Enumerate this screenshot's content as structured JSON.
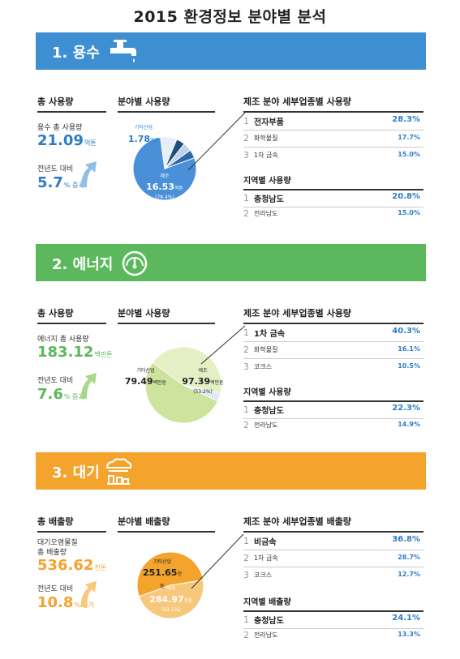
{
  "title": "2015 환경정보 분야별 분석",
  "sections": [
    {
      "title": "1. 용수",
      "color": "#3d8fd1",
      "icon": "faucet-icon",
      "total_head": "총 사용량",
      "total_label": "용수 총 사용량",
      "total_value": "21.09",
      "total_unit": "억톤",
      "change_label": "전년도 대비",
      "change_value": "5.7",
      "change_unit": "% 증가",
      "pie_head": "분야별 사용량",
      "sector_head": "제조 분야 세부업종별 사용량",
      "sectors": [
        {
          "rank": "1",
          "name": "전자부품",
          "value": "28.3%"
        },
        {
          "rank": "2",
          "name": "화학물질",
          "value": "17.7%"
        },
        {
          "rank": "3",
          "name": "1차 금속",
          "value": "15.0%"
        }
      ],
      "region_head": "지역별 사용량",
      "regions": [
        {
          "rank": "1",
          "name": "충청남도",
          "value": "20.8%"
        },
        {
          "rank": "2",
          "name": "전라남도",
          "value": "15.0%"
        }
      ],
      "pie_main": {
        "name": "제조",
        "value": "16.53",
        "unit": "억톤",
        "pct": "(78.4%)"
      },
      "pie_other": {
        "name": "기타산업",
        "value": "1.78",
        "unit": "억톤"
      }
    },
    {
      "title": "2. 에너지",
      "color": "#5cb85c",
      "icon": "gauge-icon",
      "total_head": "총 사용량",
      "total_label": "에너지 총 사용량",
      "total_value": "183.12",
      "total_unit": "백만톤",
      "change_label": "전년도 대비",
      "change_value": "7.6",
      "change_unit": "% 증가",
      "pie_head": "분야별 사용량",
      "sector_head": "제조 분야 세부업종별 사용량",
      "sectors": [
        {
          "rank": "1",
          "name": "1차 금속",
          "value": "40.3%"
        },
        {
          "rank": "2",
          "name": "화학물질",
          "value": "16.1%"
        },
        {
          "rank": "3",
          "name": "코크스",
          "value": "10.5%"
        }
      ],
      "region_head": "지역별 사용량",
      "regions": [
        {
          "rank": "1",
          "name": "충청남도",
          "value": "22.3%"
        },
        {
          "rank": "2",
          "name": "전라남도",
          "value": "14.9%"
        }
      ],
      "pie_main": {
        "name": "제조",
        "value": "97.39",
        "unit": "백만톤",
        "pct": "(53.2%)"
      },
      "pie_other": {
        "name": "기타산업",
        "value": "79.49",
        "unit": "백만톤"
      }
    },
    {
      "title": "3. 대기",
      "color": "#f4a32c",
      "icon": "smoke-icon",
      "total_head": "총 배출량",
      "total_label": "대기오염물질\n총 배출량",
      "total_value": "536.62",
      "total_unit": "천톤",
      "change_label": "전년도 대비",
      "change_value": "10.8",
      "change_unit": "% 증가",
      "pie_head": "분야별 배출량",
      "sector_head": "제조 분야 세부업종별 배출량",
      "sectors": [
        {
          "rank": "1",
          "name": "비금속",
          "value": "36.8%"
        },
        {
          "rank": "2",
          "name": "1차 금속",
          "value": "28.7%"
        },
        {
          "rank": "3",
          "name": "코크스",
          "value": "12.7%"
        }
      ],
      "region_head": "지역별 배출량",
      "regions": [
        {
          "rank": "1",
          "name": "충청남도",
          "value": "24.1%"
        },
        {
          "rank": "2",
          "name": "전라남도",
          "value": "13.3%"
        }
      ],
      "pie_main": {
        "name": "제조",
        "value": "284.97",
        "unit": "천톤",
        "pct": "(53.1%)"
      },
      "pie_other": {
        "name": "기타산업",
        "value": "251.65",
        "unit": "천톤"
      }
    }
  ],
  "chart_data": [
    {
      "type": "pie",
      "categories": [
        "제조",
        "기타산업",
        "기타",
        "기타",
        "기타"
      ],
      "values": [
        78.4,
        8.4,
        4.4,
        4.4,
        4.4
      ],
      "colors": [
        "#4a90d9",
        "#e6eef7",
        "#1f4e79",
        "#bcd3ec",
        "#2f6aa8"
      ]
    },
    {
      "type": "pie",
      "categories": [
        "제조",
        "기타산업",
        "기타"
      ],
      "values": [
        53.2,
        43.4,
        3.4
      ],
      "colors": [
        "#cde39e",
        "#e4efc3",
        "#dfe9f2"
      ]
    },
    {
      "type": "pie",
      "categories": [
        "제조",
        "기타산업"
      ],
      "values": [
        53.1,
        46.9
      ],
      "colors": [
        "#f4a32c",
        "#f7c77b"
      ]
    }
  ]
}
